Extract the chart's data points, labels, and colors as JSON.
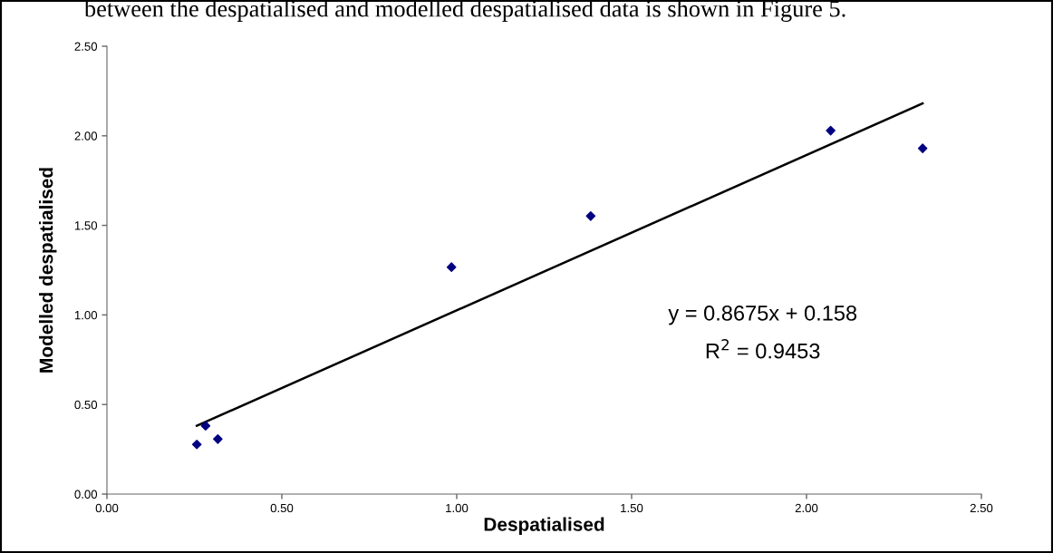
{
  "chart_data": {
    "type": "scatter",
    "xlabel": "Despatialised",
    "ylabel": "Modelled despatialised",
    "x": [
      0.257,
      0.282,
      0.317,
      0.985,
      1.383,
      2.069,
      2.332
    ],
    "series": [
      {
        "type": "scatter",
        "color": "#000080",
        "marker": "diamond",
        "values": [
          0.277,
          0.381,
          0.307,
          1.267,
          1.552,
          2.029,
          1.93
        ]
      },
      {
        "type": "line",
        "color": "#000000",
        "marker": "none",
        "line_style": "solid",
        "x": [
          0.257,
          2.332
        ],
        "values": [
          0.381,
          2.181
        ]
      }
    ],
    "xlim": [
      0,
      2.5
    ],
    "ylim": [
      0,
      2.5
    ],
    "xticks": [
      {
        "value": 0,
        "label": "0.00"
      },
      {
        "value": 0.5,
        "label": "0.50"
      },
      {
        "value": 1,
        "label": "1.00"
      },
      {
        "value": 1.5,
        "label": "1.50"
      },
      {
        "value": 2,
        "label": "2.00"
      },
      {
        "value": 2.5,
        "label": "2.50"
      }
    ],
    "yticks": [
      {
        "value": 0,
        "label": "0.00"
      },
      {
        "value": 0.5,
        "label": "0.50"
      },
      {
        "value": 1,
        "label": "1.00"
      },
      {
        "value": 1.5,
        "label": "1.50"
      },
      {
        "value": 2,
        "label": "2.00"
      },
      {
        "value": 2.5,
        "label": "2.50"
      }
    ],
    "grid": false,
    "legend": false,
    "annotations": [
      "between the despatialised and modelled despatialised data is shown in Figure 5.",
      "y = 0.8675x + 0.158",
      "R$^{2}$ = 0.9453"
    ]
  }
}
